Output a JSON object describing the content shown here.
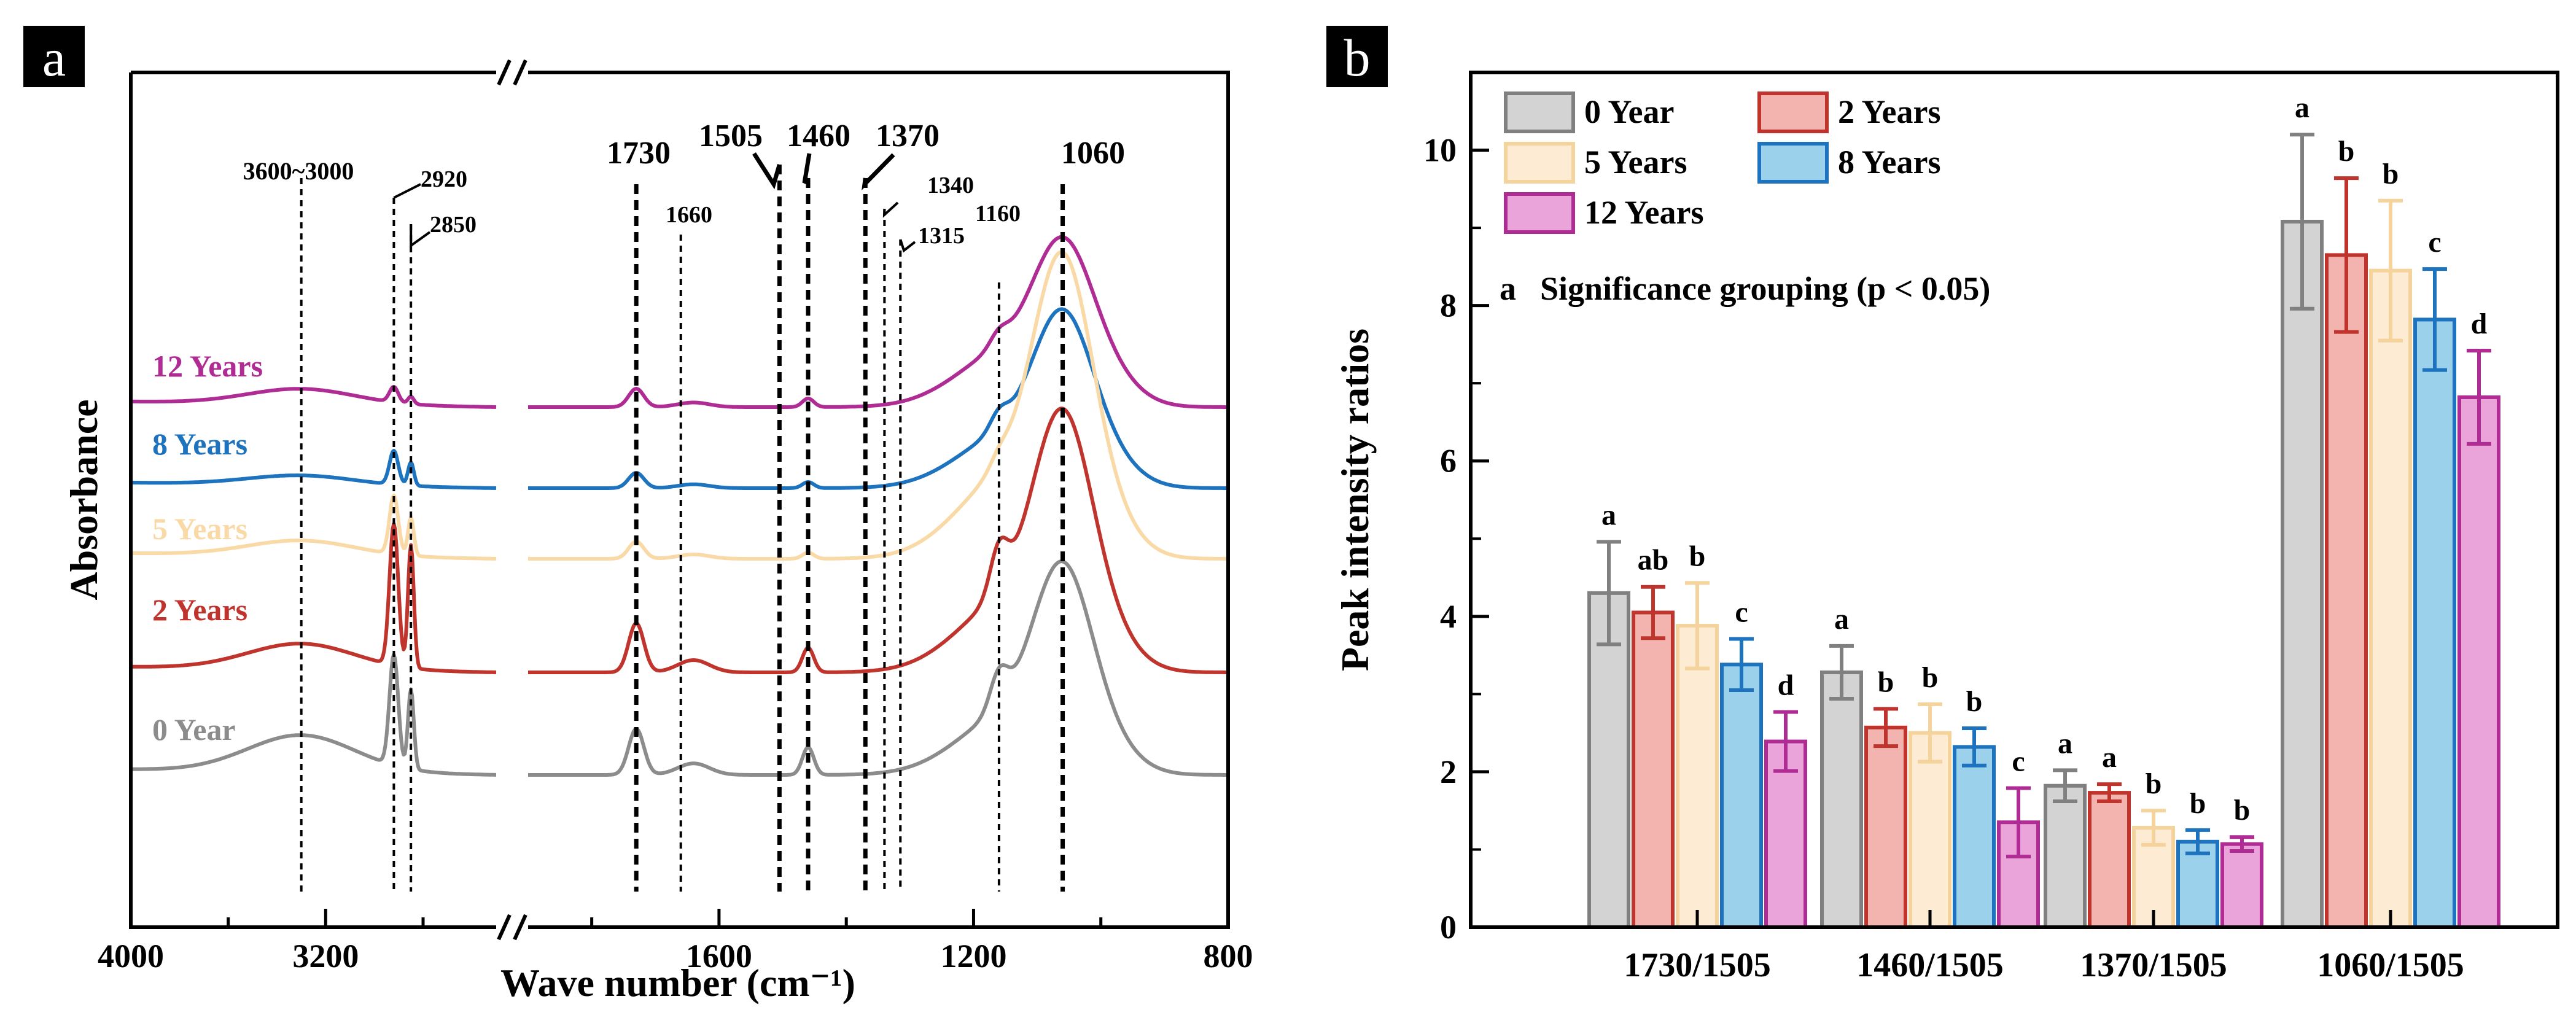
{
  "panels": {
    "a": {
      "label": "a"
    },
    "b": {
      "label": "b"
    }
  },
  "chart_data": [
    {
      "type": "line",
      "panel": "a",
      "xlabel": "Wave number (cm⁻¹)",
      "ylabel": "Absorbance",
      "x_tick_labels": [
        "4000",
        "3200",
        "1600",
        "1200",
        "800"
      ],
      "axis_segments": [
        [
          4000,
          2500
        ],
        [
          1900,
          800
        ]
      ],
      "series": [
        {
          "name": "12 Years",
          "color": "#B02C95"
        },
        {
          "name": "8 Years",
          "color": "#1E73BE"
        },
        {
          "name": "5 Years",
          "color": "#F9D9A6"
        },
        {
          "name": "2 Years",
          "color": "#C0342E"
        },
        {
          "name": "0 Year",
          "color": "#8C8C8C"
        }
      ],
      "peak_lines": [
        {
          "x": 3300,
          "label": "3600~3000",
          "style": "thin"
        },
        {
          "x": 2920,
          "label": "2920",
          "style": "thin"
        },
        {
          "x": 2850,
          "label": "2850",
          "style": "thin"
        },
        {
          "x": 1730,
          "label": "1730",
          "style": "bold"
        },
        {
          "x": 1660,
          "label": "1660",
          "style": "thin"
        },
        {
          "x": 1505,
          "label": "1505",
          "style": "bold"
        },
        {
          "x": 1460,
          "label": "1460",
          "style": "bold"
        },
        {
          "x": 1370,
          "label": "1370",
          "style": "bold"
        },
        {
          "x": 1340,
          "label": "1340",
          "style": "thin"
        },
        {
          "x": 1315,
          "label": "1315",
          "style": "thin"
        },
        {
          "x": 1160,
          "label": "1160",
          "style": "thin"
        },
        {
          "x": 1060,
          "label": "1060",
          "style": "bold"
        }
      ]
    },
    {
      "type": "bar",
      "panel": "b",
      "ylabel": "Peak intensity ratios",
      "ylim": [
        0,
        11
      ],
      "yticks": [
        0,
        2,
        4,
        6,
        8,
        10
      ],
      "categories": [
        "1730/1505",
        "1460/1505",
        "1370/1505",
        "1060/1505"
      ],
      "series": [
        {
          "name": "0 Year",
          "fill": "#D3D3D3",
          "stroke": "#808080",
          "values": [
            4.3,
            3.28,
            1.82,
            9.08
          ],
          "errors": [
            0.66,
            0.34,
            0.2,
            1.12
          ],
          "groups": [
            "a",
            "a",
            "a",
            "a"
          ]
        },
        {
          "name": "2 Years",
          "fill": "#F3B3AE",
          "stroke": "#C0342E",
          "values": [
            4.05,
            2.57,
            1.73,
            8.65
          ],
          "errors": [
            0.33,
            0.24,
            0.11,
            0.99
          ],
          "groups": [
            "ab",
            "b",
            "a",
            "b"
          ]
        },
        {
          "name": "5 Years",
          "fill": "#FDEBD3",
          "stroke": "#F5D39C",
          "values": [
            3.88,
            2.5,
            1.28,
            8.45
          ],
          "errors": [
            0.55,
            0.37,
            0.22,
            0.9
          ],
          "groups": [
            "b",
            "b",
            "b",
            "b"
          ]
        },
        {
          "name": "8 Years",
          "fill": "#9CD1EC",
          "stroke": "#1E73BE",
          "values": [
            3.38,
            2.32,
            1.1,
            7.82
          ],
          "errors": [
            0.33,
            0.24,
            0.15,
            0.65
          ],
          "groups": [
            "c",
            "b",
            "b",
            "c"
          ]
        },
        {
          "name": "12 Years",
          "fill": "#EBA4DA",
          "stroke": "#B02C95",
          "values": [
            2.39,
            1.35,
            1.07,
            6.82
          ],
          "errors": [
            0.38,
            0.44,
            0.09,
            0.6
          ],
          "groups": [
            "d",
            "c",
            "b",
            "d"
          ]
        }
      ],
      "annotation": {
        "marker": "a",
        "text": "Significance grouping (p < 0.05)"
      },
      "legend_position": "top-left"
    }
  ]
}
